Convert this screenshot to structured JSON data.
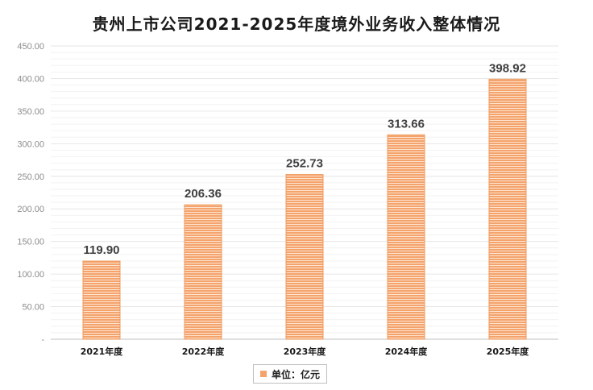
{
  "chart_data": {
    "type": "bar",
    "title": "贵州上市公司2021-2025年度境外业务收入整体情况",
    "categories": [
      "2021年度",
      "2022年度",
      "2023年度",
      "2024年度",
      "2025年度"
    ],
    "series": [
      {
        "name": "单位：亿元",
        "values": [
          119.9,
          206.36,
          252.73,
          313.66,
          398.92
        ]
      }
    ],
    "data_labels": [
      "119.90",
      "206.36",
      "252.73",
      "313.66",
      "398.92"
    ],
    "ylim": [
      0,
      450
    ],
    "y_ticks": [
      0,
      50,
      100,
      150,
      200,
      250,
      300,
      350,
      400,
      450
    ],
    "y_tick_labels": [
      "-",
      "50.00",
      "100.00",
      "150.00",
      "200.00",
      "250.00",
      "300.00",
      "350.00",
      "400.00",
      "450.00"
    ],
    "grid": true,
    "legend_position": "bottom",
    "colors": {
      "bar": "#f4a36c",
      "bar_stripe": "#fde3cf",
      "grid": "#e6e6e6",
      "axis": "#bfbfbf"
    }
  }
}
